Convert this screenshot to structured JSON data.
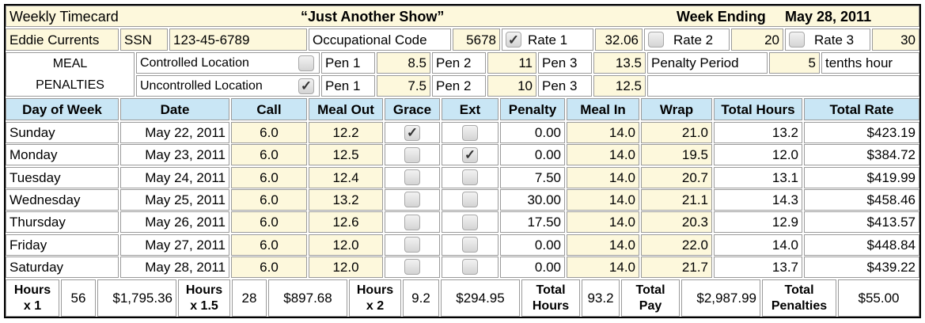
{
  "header": {
    "title": "Weekly Timecard",
    "show": "“Just Another Show”",
    "week_ending_label": "Week Ending",
    "week_ending_date": "May 28, 2011"
  },
  "info": {
    "name": "Eddie Currents",
    "ssn_label": "SSN",
    "ssn": "123-45-6789",
    "occ_label": "Occupational Code",
    "occ_code": "5678",
    "rate1_label": "Rate 1",
    "rate1_checked": true,
    "rate1": "32.06",
    "rate2_label": "Rate 2",
    "rate2_checked": false,
    "rate2": "20",
    "rate3_label": "Rate 3",
    "rate3_checked": false,
    "rate3": "30"
  },
  "meal": {
    "label1": "MEAL",
    "label2": "PENALTIES",
    "controlled_label": "Controlled Location",
    "controlled_checked": false,
    "uncontrolled_label": "Uncontrolled Location",
    "uncontrolled_checked": true,
    "pen_label_1": "Pen 1",
    "pen_label_2": "Pen 2",
    "pen_label_3": "Pen 3",
    "controlled_pen1": "8.5",
    "controlled_pen2": "11",
    "controlled_pen3": "13.5",
    "uncontrolled_pen1": "7.5",
    "uncontrolled_pen2": "10",
    "uncontrolled_pen3": "12.5",
    "penalty_period_label": "Penalty Period",
    "penalty_period": "5",
    "penalty_period_unit": "tenths hour"
  },
  "columns": [
    "Day of Week",
    "Date",
    "Call",
    "Meal Out",
    "Grace",
    "Ext",
    "Penalty",
    "Meal In",
    "Wrap",
    "Total Hours",
    "Total Rate"
  ],
  "rows": [
    {
      "day": "Sunday",
      "date": "May 22, 2011",
      "call": "6.0",
      "meal_out": "12.2",
      "grace": true,
      "ext": false,
      "penalty": "0.00",
      "meal_in": "14.0",
      "wrap": "21.0",
      "total_hours": "13.2",
      "total_rate": "$423.19"
    },
    {
      "day": "Monday",
      "date": "May 23, 2011",
      "call": "6.0",
      "meal_out": "12.5",
      "grace": false,
      "ext": true,
      "penalty": "0.00",
      "meal_in": "14.0",
      "wrap": "19.5",
      "total_hours": "12.0",
      "total_rate": "$384.72"
    },
    {
      "day": "Tuesday",
      "date": "May 24, 2011",
      "call": "6.0",
      "meal_out": "12.4",
      "grace": false,
      "ext": false,
      "penalty": "7.50",
      "meal_in": "14.0",
      "wrap": "20.7",
      "total_hours": "13.1",
      "total_rate": "$419.99"
    },
    {
      "day": "Wednesday",
      "date": "May 25, 2011",
      "call": "6.0",
      "meal_out": "13.2",
      "grace": false,
      "ext": false,
      "penalty": "30.00",
      "meal_in": "14.0",
      "wrap": "21.1",
      "total_hours": "14.3",
      "total_rate": "$458.46"
    },
    {
      "day": "Thursday",
      "date": "May 26, 2011",
      "call": "6.0",
      "meal_out": "12.6",
      "grace": false,
      "ext": false,
      "penalty": "17.50",
      "meal_in": "14.0",
      "wrap": "20.3",
      "total_hours": "12.9",
      "total_rate": "$413.57"
    },
    {
      "day": "Friday",
      "date": "May 27, 2011",
      "call": "6.0",
      "meal_out": "12.0",
      "grace": false,
      "ext": false,
      "penalty": "0.00",
      "meal_in": "14.0",
      "wrap": "22.0",
      "total_hours": "14.0",
      "total_rate": "$448.84"
    },
    {
      "day": "Saturday",
      "date": "May 28, 2011",
      "call": "6.0",
      "meal_out": "12.0",
      "grace": false,
      "ext": false,
      "penalty": "0.00",
      "meal_in": "14.0",
      "wrap": "21.7",
      "total_hours": "13.7",
      "total_rate": "$439.22"
    }
  ],
  "totals": {
    "h1_label_a": "Hours",
    "h1_label_b": "x 1",
    "h1_hours": "56",
    "h1_pay": "$1,795.36",
    "h15_label_a": "Hours",
    "h15_label_b": "x 1.5",
    "h15_hours": "28",
    "h15_pay": "$897.68",
    "h2_label_a": "Hours",
    "h2_label_b": "x 2",
    "h2_hours": "9.2",
    "h2_pay": "$294.95",
    "th_label_a": "Total",
    "th_label_b": "Hours",
    "total_hours": "93.2",
    "tp_label_a": "Total",
    "tp_label_b": "Pay",
    "total_pay": "$2,987.99",
    "tpen_label_a": "Total",
    "tpen_label_b": "Penalties",
    "total_penalties": "$55.00"
  },
  "checkmark_glyph": "✓"
}
